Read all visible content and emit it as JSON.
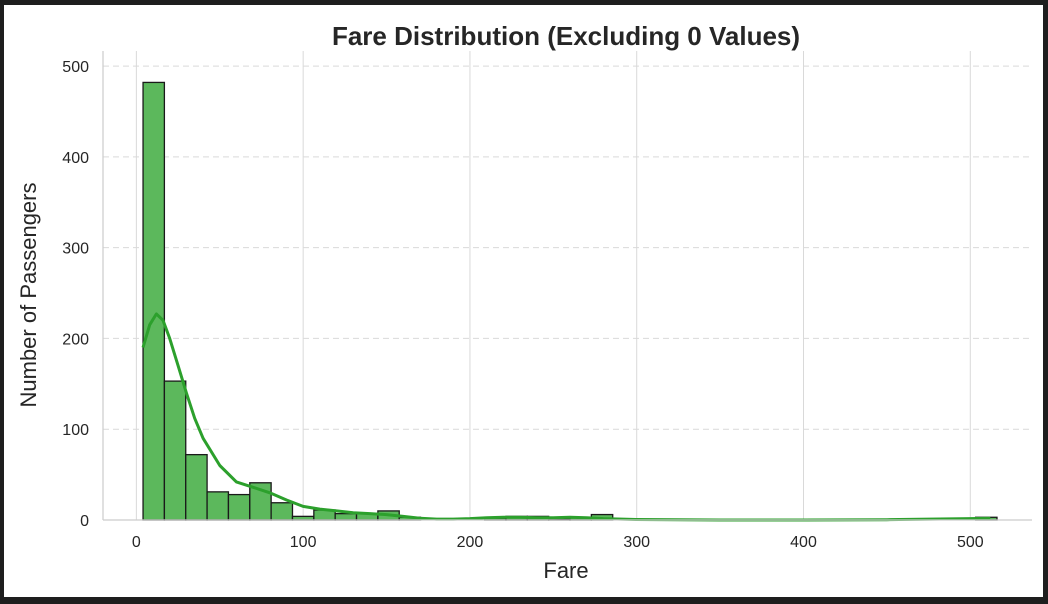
{
  "chart_data": {
    "type": "bar",
    "title": "Fare Distribution (Excluding 0 Values)",
    "xlabel": "Fare",
    "ylabel": "Number of Passengers",
    "xlim": [
      -20,
      537
    ],
    "ylim": [
      0,
      510
    ],
    "xticks": [
      0,
      100,
      200,
      300,
      400,
      500
    ],
    "yticks": [
      0,
      100,
      200,
      300,
      400,
      500
    ],
    "grid": {
      "x": "solid",
      "y": "dashed"
    },
    "bin_width": 12.8,
    "bins_start": 4.01,
    "values": [
      482,
      153,
      72,
      31,
      28,
      41,
      19,
      4,
      11,
      7,
      7,
      10,
      3,
      0,
      0,
      0,
      2,
      4,
      4,
      1,
      3,
      6,
      0,
      0,
      0,
      0,
      0,
      0,
      0,
      0,
      0,
      0,
      0,
      0,
      0,
      0,
      0,
      0,
      0,
      3
    ],
    "bar_color": "#5cb85c",
    "edge_color": "#1a1a1a",
    "kde_color": "#2ca02c",
    "kde": {
      "x": [
        4,
        8,
        12,
        16,
        20,
        25,
        30,
        35,
        40,
        50,
        60,
        70,
        80,
        90,
        100,
        110,
        120,
        130,
        140,
        150,
        160,
        170,
        180,
        190,
        200,
        210,
        220,
        230,
        240,
        250,
        260,
        270,
        280,
        300,
        350,
        400,
        450,
        500,
        512
      ],
      "y": [
        190,
        215,
        227,
        220,
        200,
        170,
        140,
        112,
        90,
        60,
        42,
        36,
        30,
        22,
        15,
        12,
        10,
        8,
        7,
        6,
        4,
        2,
        1,
        1,
        1.5,
        2.5,
        3,
        3,
        2.5,
        2.5,
        3,
        2.5,
        1.5,
        0.5,
        0,
        0,
        0.3,
        1.5,
        2
      ]
    }
  }
}
